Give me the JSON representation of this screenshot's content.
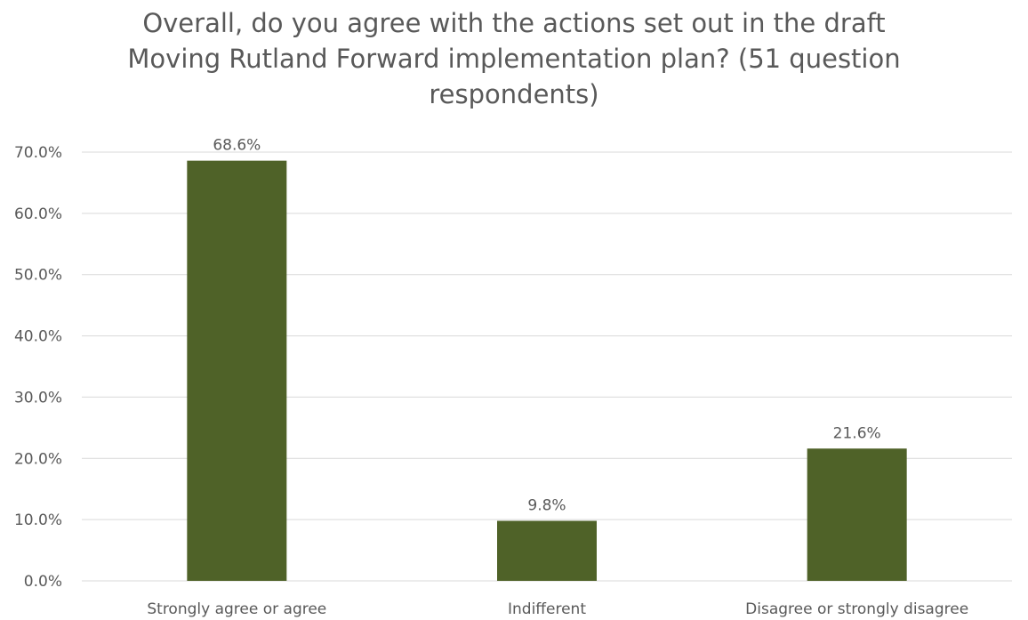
{
  "chart_data": {
    "type": "bar",
    "title_lines": [
      "Overall, do you agree with the actions set out in the draft",
      "Moving Rutland Forward implementation plan? (51 question",
      "respondents)"
    ],
    "title": "Overall, do you agree with the actions set out in the draft Moving Rutland Forward implementation plan? (51 question respondents)",
    "categories": [
      "Strongly agree or agree",
      "Indifferent",
      "Disagree or strongly disagree"
    ],
    "values": [
      68.6,
      9.8,
      21.6
    ],
    "data_labels": [
      "68.6%",
      "9.8%",
      "21.6%"
    ],
    "xlabel": "",
    "ylabel": "",
    "ylim": [
      0,
      70
    ],
    "y_ticks": [
      0,
      10,
      20,
      30,
      40,
      50,
      60,
      70
    ],
    "y_tick_labels": [
      "0.0%",
      "10.0%",
      "20.0%",
      "30.0%",
      "40.0%",
      "50.0%",
      "60.0%",
      "70.0%"
    ],
    "grid": true,
    "legend": "none",
    "bar_color": "#4f6228",
    "grid_color": "#d9d9d9",
    "text_color": "#595959"
  }
}
